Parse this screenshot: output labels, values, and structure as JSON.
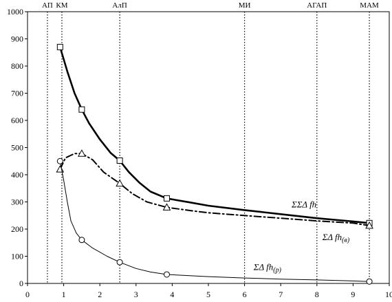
{
  "chart_data": {
    "type": "line",
    "xlim": [
      0,
      10
    ],
    "ylim": [
      0,
      1000
    ],
    "x_ticks": [
      0,
      1,
      2,
      3,
      4,
      5,
      6,
      7,
      8,
      9,
      10
    ],
    "y_ticks": [
      0,
      100,
      200,
      300,
      400,
      500,
      600,
      700,
      800,
      900,
      1000
    ],
    "grid": false,
    "legend": "none",
    "vlines": [
      {
        "x": 0.55,
        "label": "АП"
      },
      {
        "x": 0.95,
        "label": "КМ"
      },
      {
        "x": 2.55,
        "label": "АлП"
      },
      {
        "x": 6.0,
        "label": "МИ"
      },
      {
        "x": 8.0,
        "label": "АГАП"
      },
      {
        "x": 9.45,
        "label": "МАМ"
      }
    ],
    "series": [
      {
        "name": "ΣΣΔ fh",
        "marker": "square",
        "line_style": "solid-thick",
        "points": [
          [
            0.9,
            870
          ],
          [
            1.5,
            640
          ],
          [
            2.55,
            452
          ],
          [
            3.85,
            313
          ],
          [
            9.45,
            222
          ]
        ],
        "curve": [
          [
            0.9,
            870
          ],
          [
            1.1,
            780
          ],
          [
            1.3,
            700
          ],
          [
            1.5,
            640
          ],
          [
            1.7,
            590
          ],
          [
            2.0,
            530
          ],
          [
            2.3,
            480
          ],
          [
            2.55,
            452
          ],
          [
            2.8,
            410
          ],
          [
            3.1,
            370
          ],
          [
            3.4,
            338
          ],
          [
            3.85,
            313
          ],
          [
            4.5,
            298
          ],
          [
            5.0,
            286
          ],
          [
            6.0,
            270
          ],
          [
            7.0,
            255
          ],
          [
            8.0,
            240
          ],
          [
            9.0,
            228
          ],
          [
            9.45,
            222
          ]
        ]
      },
      {
        "name": "ΣΔ fh(в)",
        "marker": "triangle",
        "line_style": "dash-dot",
        "points": [
          [
            0.9,
            420
          ],
          [
            1.5,
            478
          ],
          [
            2.55,
            368
          ],
          [
            3.85,
            280
          ],
          [
            9.45,
            213
          ]
        ],
        "curve": [
          [
            0.9,
            420
          ],
          [
            1.05,
            462
          ],
          [
            1.3,
            478
          ],
          [
            1.5,
            478
          ],
          [
            1.8,
            455
          ],
          [
            2.1,
            410
          ],
          [
            2.55,
            368
          ],
          [
            2.9,
            330
          ],
          [
            3.3,
            300
          ],
          [
            3.85,
            280
          ],
          [
            4.5,
            268
          ],
          [
            5.0,
            260
          ],
          [
            6.0,
            250
          ],
          [
            7.0,
            240
          ],
          [
            8.0,
            230
          ],
          [
            9.0,
            222
          ],
          [
            9.45,
            213
          ]
        ]
      },
      {
        "name": "ΣΔ fh(р)",
        "marker": "circle",
        "line_style": "solid-thin",
        "points": [
          [
            0.9,
            450
          ],
          [
            1.5,
            160
          ],
          [
            2.55,
            78
          ],
          [
            3.85,
            33
          ],
          [
            9.45,
            7
          ]
        ],
        "curve": [
          [
            0.9,
            450
          ],
          [
            1.0,
            380
          ],
          [
            1.1,
            300
          ],
          [
            1.2,
            230
          ],
          [
            1.35,
            185
          ],
          [
            1.5,
            160
          ],
          [
            1.8,
            130
          ],
          [
            2.2,
            100
          ],
          [
            2.55,
            78
          ],
          [
            3.0,
            55
          ],
          [
            3.4,
            42
          ],
          [
            3.85,
            33
          ],
          [
            5.0,
            25
          ],
          [
            6.0,
            20
          ],
          [
            7.0,
            16
          ],
          [
            8.0,
            13
          ],
          [
            9.0,
            9
          ],
          [
            9.45,
            7
          ]
        ]
      }
    ],
    "annotations": [
      {
        "text": "ΣΣΔ fh",
        "x": 7.3,
        "y": 280
      },
      {
        "text": "ΣΔ fh",
        "sub": "(в)",
        "x": 8.15,
        "y": 160
      },
      {
        "text": "ΣΔ fh",
        "sub": "(р)",
        "x": 6.25,
        "y": 50
      }
    ]
  }
}
